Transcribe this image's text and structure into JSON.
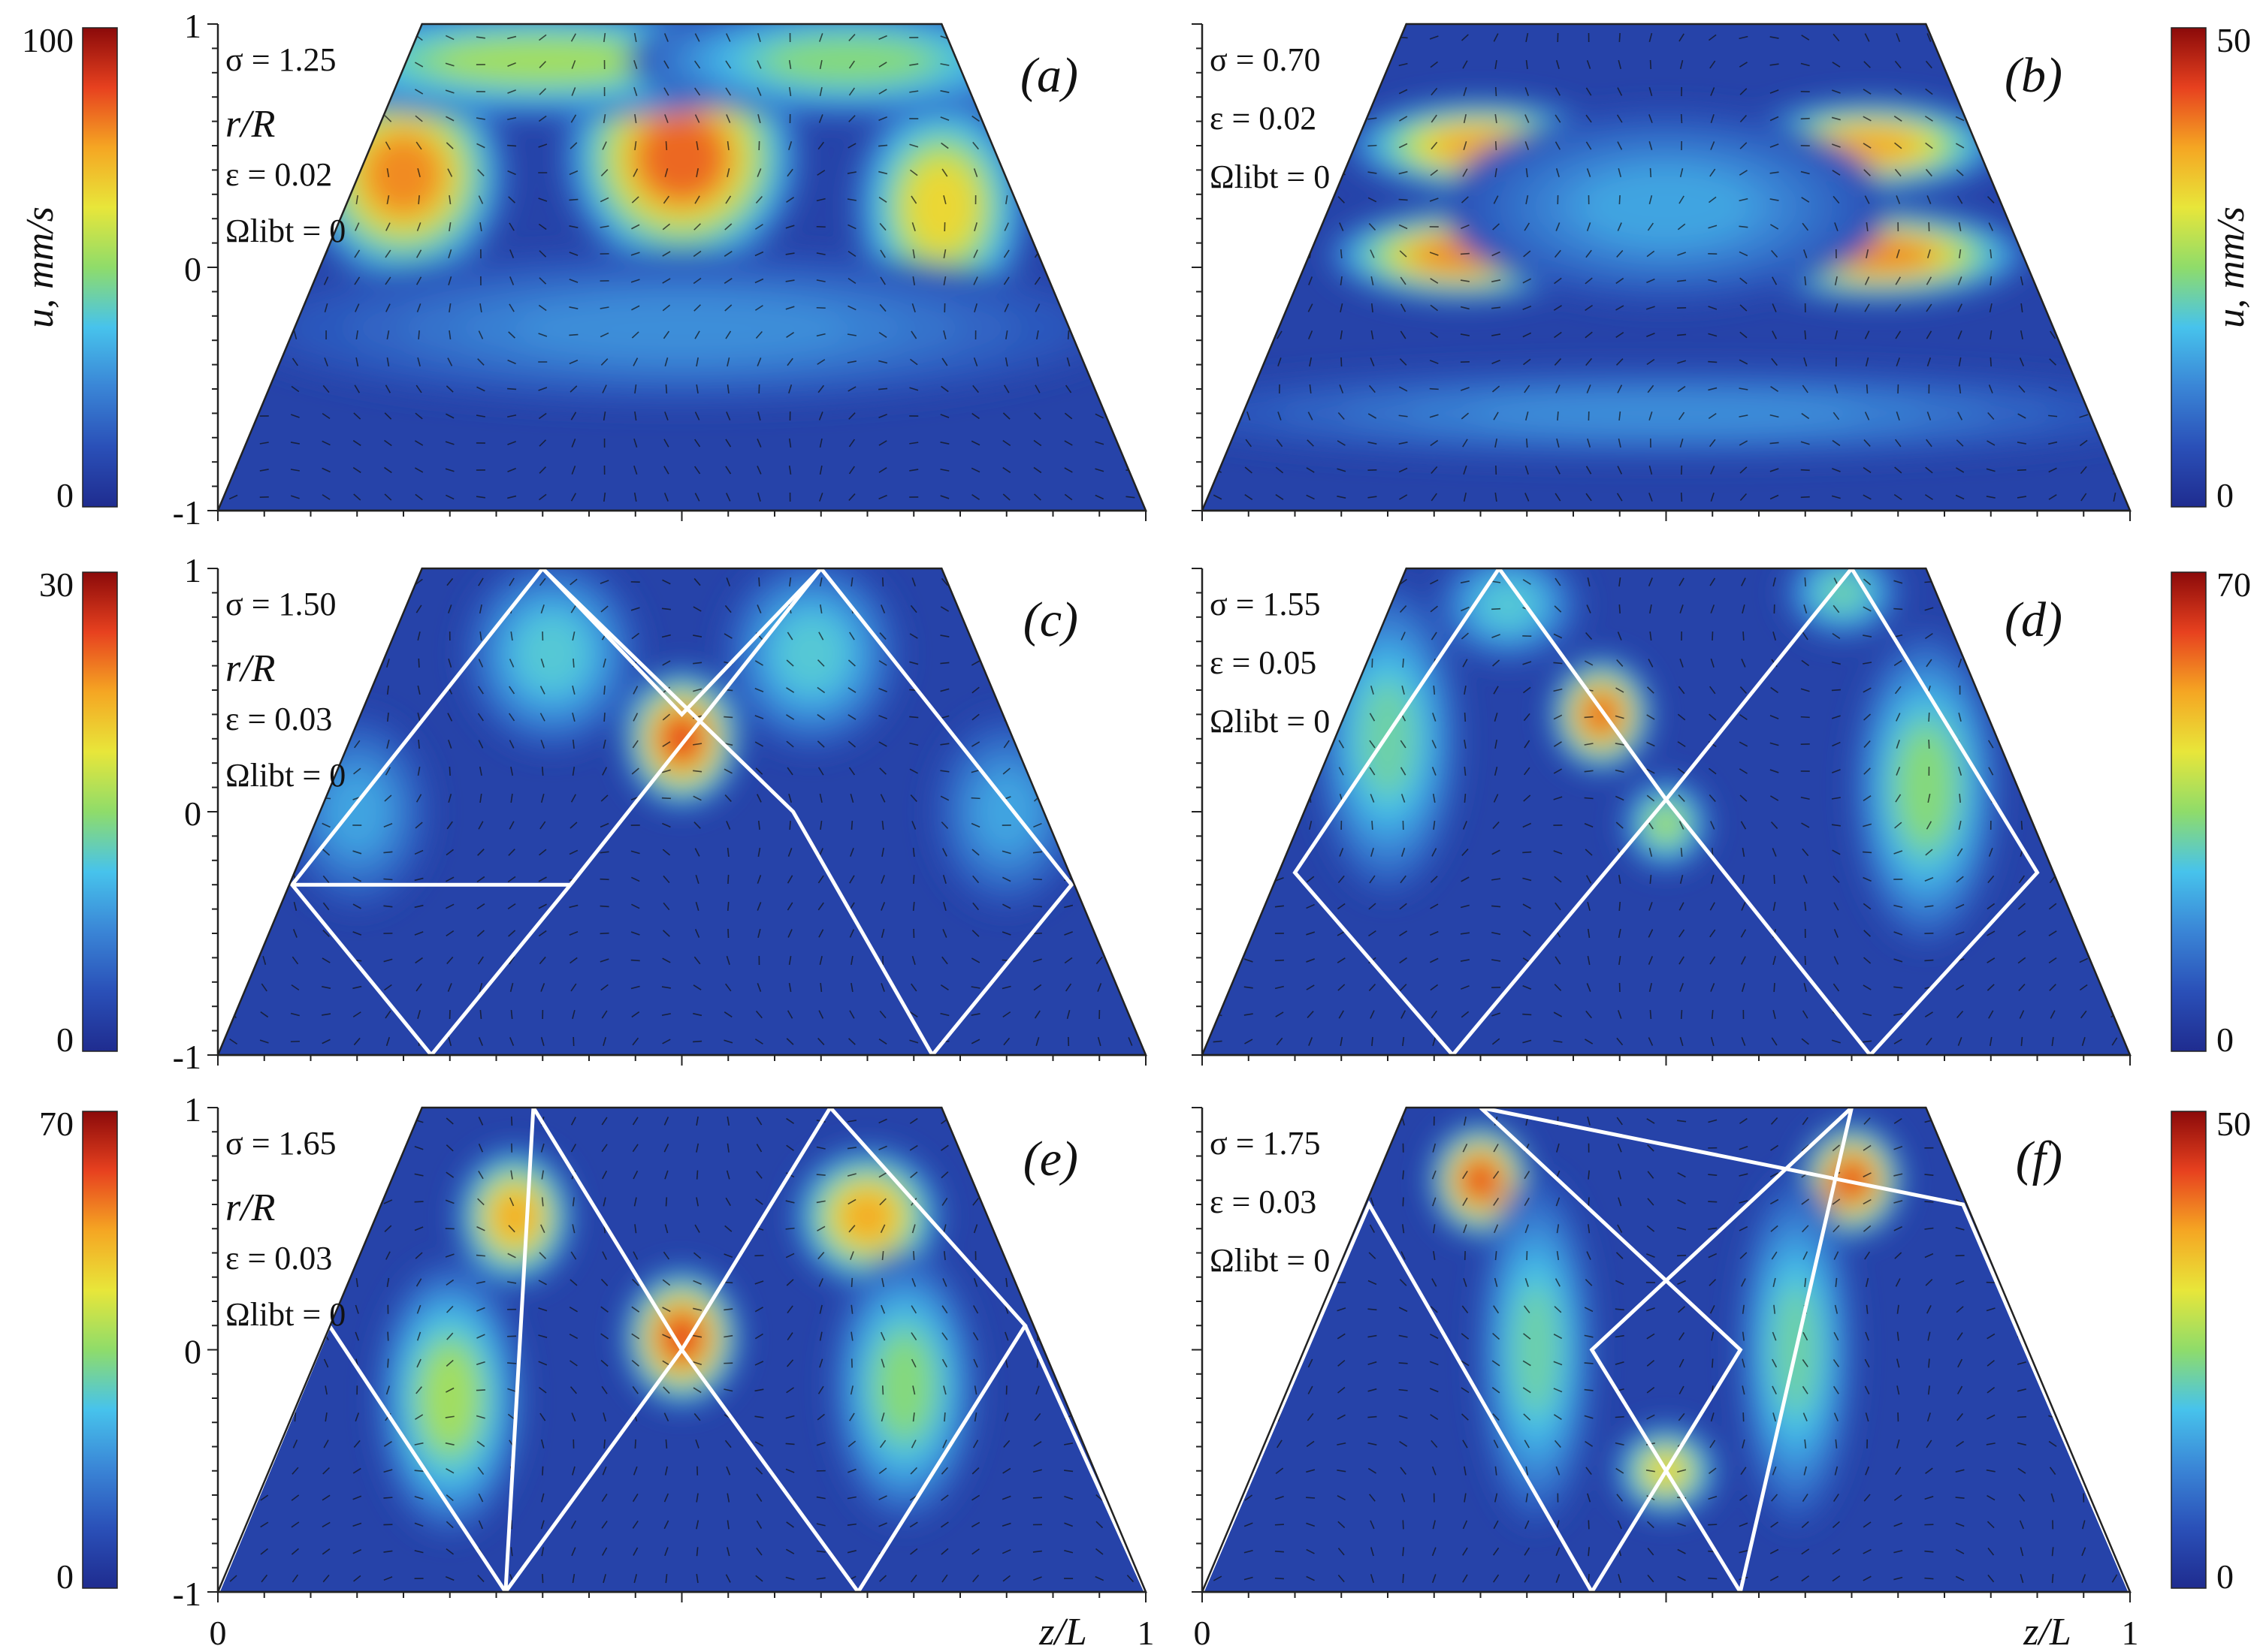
{
  "figure": {
    "colormap": [
      "#1f2c8f",
      "#2a50b8",
      "#3a85d6",
      "#47c3ec",
      "#8fdc6a",
      "#e8e63a",
      "#f5a623",
      "#e7411f",
      "#8b0a0a"
    ],
    "vector_color": "#111111",
    "ray_color": "#ffffff"
  },
  "chart_data": [
    {
      "type": "heatmap",
      "panel_label": "(a)",
      "params": [
        "σ = 1.25",
        "ε = 0.02",
        "Ωlibt = 0"
      ],
      "sigma": "1.25",
      "epsilon": "0.02",
      "ylabel": "r/R",
      "yticks": [
        "1",
        "0",
        "-1"
      ],
      "ylim": [
        -1,
        1
      ],
      "xlim": [
        0,
        1
      ],
      "colorbar": {
        "label": "u, mm/s",
        "min": 0,
        "max": 100,
        "side": "left"
      },
      "rays": [],
      "hotspots": [
        {
          "z": 0.2,
          "r": 0.38,
          "v": 0.9,
          "wz": 0.07,
          "wr": 0.28
        },
        {
          "z": 0.5,
          "r": 0.45,
          "v": 0.95,
          "wz": 0.08,
          "wr": 0.3
        },
        {
          "z": 0.78,
          "r": 0.25,
          "v": 0.75,
          "wz": 0.06,
          "wr": 0.3
        },
        {
          "z": 0.35,
          "r": 0.85,
          "v": 0.6,
          "wz": 0.2,
          "wr": 0.15
        },
        {
          "z": 0.68,
          "r": 0.85,
          "v": 0.55,
          "wz": 0.15,
          "wr": 0.15
        },
        {
          "z": 0.5,
          "r": -0.25,
          "v": 0.3,
          "wz": 0.3,
          "wr": 0.2
        }
      ]
    },
    {
      "type": "heatmap",
      "panel_label": "(b)",
      "params": [
        "σ = 0.70",
        "ε = 0.02",
        "Ωlibt = 0"
      ],
      "sigma": "0.70",
      "epsilon": "0.02",
      "ylabel": "",
      "yticks": [],
      "ylim": [
        -1,
        1
      ],
      "xlim": [
        0,
        1
      ],
      "colorbar": {
        "label": "u, mm/s",
        "min": 0,
        "max": 50,
        "side": "right"
      },
      "rays": [],
      "hotspots": [
        {
          "z": 0.3,
          "r": 0.5,
          "v": 0.85,
          "wz": 0.09,
          "wr": 0.12
        },
        {
          "z": 0.72,
          "r": 0.5,
          "v": 0.85,
          "wz": 0.09,
          "wr": 0.12
        },
        {
          "z": 0.28,
          "r": 0.05,
          "v": 0.9,
          "wz": 0.09,
          "wr": 0.12
        },
        {
          "z": 0.73,
          "r": 0.05,
          "v": 0.9,
          "wz": 0.1,
          "wr": 0.12
        },
        {
          "z": 0.5,
          "r": 0.25,
          "v": 0.35,
          "wz": 0.15,
          "wr": 0.25
        },
        {
          "z": 0.5,
          "r": -0.6,
          "v": 0.3,
          "wz": 0.35,
          "wr": 0.12
        }
      ]
    },
    {
      "type": "heatmap",
      "panel_label": "(c)",
      "params": [
        "σ = 1.50",
        "ε = 0.03",
        "Ωlibt = 0"
      ],
      "sigma": "1.50",
      "epsilon": "0.03",
      "ylabel": "r/R",
      "yticks": [
        "1",
        "0",
        "-1"
      ],
      "ylim": [
        -1,
        1
      ],
      "xlim": [
        0,
        1
      ],
      "colorbar": {
        "label": "",
        "min": 0,
        "max": 30,
        "side": "left"
      },
      "rays": [
        [
          [
            0.23,
            -1
          ],
          [
            0.08,
            -0.3
          ],
          [
            0.35,
            1
          ],
          [
            0.62,
            -0.0
          ],
          [
            0.77,
            -1
          ]
        ],
        [
          [
            0.23,
            -1
          ],
          [
            0.38,
            -0.3
          ],
          [
            0.65,
            1
          ],
          [
            0.92,
            -0.3
          ],
          [
            0.77,
            -1
          ]
        ],
        [
          [
            0.08,
            -0.3
          ],
          [
            0.38,
            -0.3
          ]
        ],
        [
          [
            0.35,
            1
          ],
          [
            0.5,
            0.4
          ],
          [
            0.65,
            1
          ]
        ]
      ],
      "hotspots": [
        {
          "z": 0.5,
          "r": 0.3,
          "v": 1.0,
          "wz": 0.04,
          "wr": 0.18
        },
        {
          "z": 0.36,
          "r": 0.65,
          "v": 0.45,
          "wz": 0.06,
          "wr": 0.25
        },
        {
          "z": 0.64,
          "r": 0.65,
          "v": 0.45,
          "wz": 0.06,
          "wr": 0.25
        },
        {
          "z": 0.15,
          "r": 0.0,
          "v": 0.35,
          "wz": 0.05,
          "wr": 0.25
        },
        {
          "z": 0.85,
          "r": 0.0,
          "v": 0.35,
          "wz": 0.05,
          "wr": 0.25
        }
      ]
    },
    {
      "type": "heatmap",
      "panel_label": "(d)",
      "params": [
        "σ = 1.55",
        "ε = 0.05",
        "Ωlibt = 0"
      ],
      "sigma": "1.55",
      "epsilon": "0.05",
      "ylabel": "",
      "yticks": [],
      "ylim": [
        -1,
        1
      ],
      "xlim": [
        0,
        1
      ],
      "colorbar": {
        "label": "",
        "min": 0,
        "max": 70,
        "side": "right"
      },
      "rays": [
        [
          [
            0.27,
            -1
          ],
          [
            0.1,
            -0.25
          ],
          [
            0.32,
            1
          ],
          [
            0.5,
            0.05
          ],
          [
            0.72,
            -1
          ]
        ],
        [
          [
            0.27,
            -1
          ],
          [
            0.5,
            0.05
          ],
          [
            0.7,
            1
          ],
          [
            0.9,
            -0.25
          ],
          [
            0.72,
            -1
          ]
        ]
      ],
      "hotspots": [
        {
          "z": 0.43,
          "r": 0.4,
          "v": 0.95,
          "wz": 0.035,
          "wr": 0.15
        },
        {
          "z": 0.5,
          "r": -0.05,
          "v": 0.6,
          "wz": 0.03,
          "wr": 0.12
        },
        {
          "z": 0.2,
          "r": 0.3,
          "v": 0.5,
          "wz": 0.05,
          "wr": 0.4
        },
        {
          "z": 0.78,
          "r": 0.1,
          "v": 0.55,
          "wz": 0.05,
          "wr": 0.4
        },
        {
          "z": 0.33,
          "r": 0.85,
          "v": 0.45,
          "wz": 0.05,
          "wr": 0.15
        },
        {
          "z": 0.69,
          "r": 0.9,
          "v": 0.5,
          "wz": 0.04,
          "wr": 0.12
        }
      ]
    },
    {
      "type": "heatmap",
      "panel_label": "(e)",
      "params": [
        "σ = 1.65",
        "ε = 0.03",
        "Ωlibt = 0"
      ],
      "sigma": "1.65",
      "epsilon": "0.03",
      "ylabel": "r/R",
      "yticks": [
        "1",
        "0",
        "-1"
      ],
      "ylim": [
        -1,
        1
      ],
      "xlim": [
        0,
        1
      ],
      "colorbar": {
        "label": "",
        "min": 0,
        "max": 70,
        "side": "left"
      },
      "rays": [
        [
          [
            0.0,
            -1
          ],
          [
            0.12,
            0.1
          ],
          [
            0.31,
            -1
          ],
          [
            0.5,
            0.0
          ],
          [
            0.66,
            1
          ],
          [
            0.87,
            0.1
          ],
          [
            0.69,
            -1
          ]
        ],
        [
          [
            0.0,
            -1
          ],
          [
            0.12,
            0.1
          ]
        ],
        [
          [
            1.0,
            -1
          ],
          [
            0.87,
            0.1
          ]
        ],
        [
          [
            0.31,
            -1
          ],
          [
            0.34,
            1
          ],
          [
            0.5,
            0.0
          ],
          [
            0.69,
            -1
          ]
        ]
      ],
      "hotspots": [
        {
          "z": 0.5,
          "r": 0.05,
          "v": 1.0,
          "wz": 0.04,
          "wr": 0.18
        },
        {
          "z": 0.32,
          "r": 0.55,
          "v": 0.85,
          "wz": 0.04,
          "wr": 0.18
        },
        {
          "z": 0.7,
          "r": 0.55,
          "v": 0.85,
          "wz": 0.05,
          "wr": 0.18
        },
        {
          "z": 0.25,
          "r": -0.2,
          "v": 0.6,
          "wz": 0.05,
          "wr": 0.35
        },
        {
          "z": 0.74,
          "r": -0.15,
          "v": 0.55,
          "wz": 0.05,
          "wr": 0.35
        }
      ]
    },
    {
      "type": "heatmap",
      "panel_label": "(f)",
      "params": [
        "σ = 1.75",
        "ε = 0.03",
        "Ωlibt = 0"
      ],
      "sigma": "1.75",
      "epsilon": "0.03",
      "ylabel": "",
      "yticks": [],
      "ylim": [
        -1,
        1
      ],
      "xlim": [
        0,
        1
      ],
      "colorbar": {
        "label": "",
        "min": 0,
        "max": 50,
        "side": "right"
      },
      "rays": [
        [
          [
            0.0,
            -1
          ],
          [
            0.18,
            0.6
          ],
          [
            0.42,
            -1
          ]
        ],
        [
          [
            0.42,
            -1
          ],
          [
            0.58,
            0.0
          ],
          [
            0.3,
            1
          ]
        ],
        [
          [
            0.58,
            -1
          ],
          [
            0.42,
            0.0
          ],
          [
            0.7,
            1
          ]
        ],
        [
          [
            0.3,
            1
          ],
          [
            0.82,
            0.6
          ],
          [
            1.0,
            -1
          ]
        ],
        [
          [
            0.7,
            1
          ],
          [
            0.58,
            -1
          ]
        ]
      ],
      "hotspots": [
        {
          "z": 0.3,
          "r": 0.7,
          "v": 1.0,
          "wz": 0.035,
          "wr": 0.15
        },
        {
          "z": 0.7,
          "r": 0.7,
          "v": 1.0,
          "wz": 0.035,
          "wr": 0.15
        },
        {
          "z": 0.5,
          "r": -0.5,
          "v": 0.75,
          "wz": 0.035,
          "wr": 0.12
        },
        {
          "z": 0.36,
          "r": 0.0,
          "v": 0.5,
          "wz": 0.04,
          "wr": 0.45
        },
        {
          "z": 0.64,
          "r": 0.0,
          "v": 0.5,
          "wz": 0.04,
          "wr": 0.45
        }
      ]
    }
  ],
  "shared_x": {
    "xlabel": "z/L",
    "xticks": [
      "0",
      "1"
    ]
  }
}
